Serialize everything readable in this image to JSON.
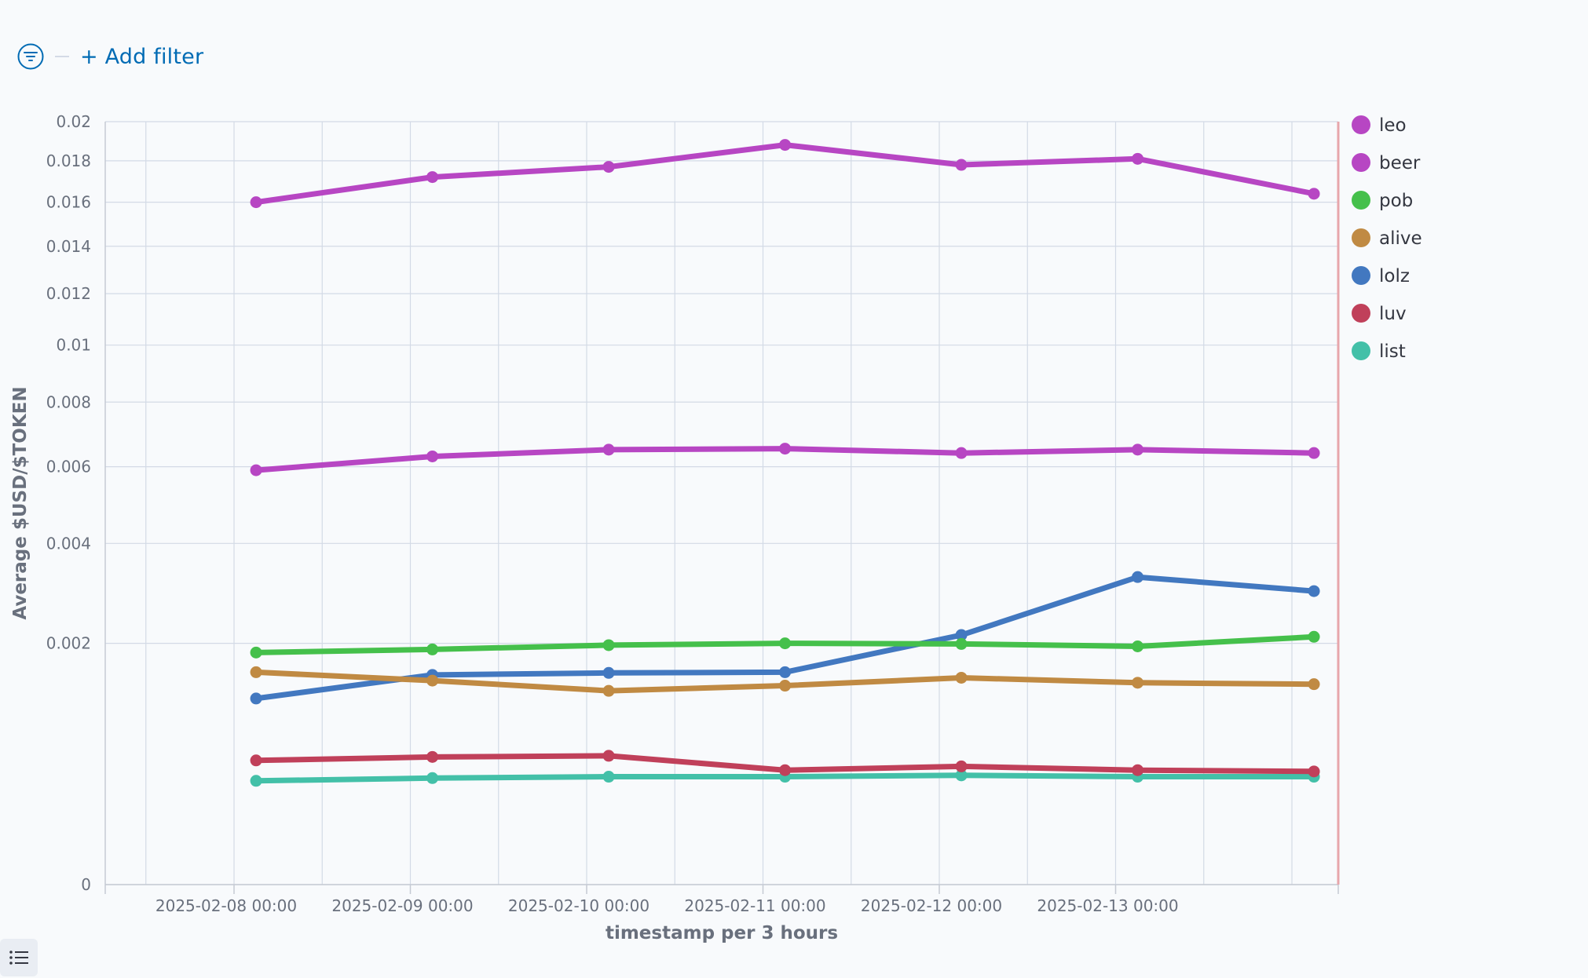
{
  "filter_bar": {
    "add_filter_label": "+ Add filter"
  },
  "chart_data": {
    "type": "line",
    "xlabel": "timestamp per 3 hours",
    "ylabel": "Average $USD/$TOKEN",
    "y_scale": "sqrt",
    "ylim": [
      0,
      0.02
    ],
    "y_ticks": [
      "0",
      "0.002",
      "0.004",
      "0.006",
      "0.008",
      "0.01",
      "0.012",
      "0.014",
      "0.016",
      "0.018",
      "0.02"
    ],
    "y_tick_values": [
      0,
      0.002,
      0.004,
      0.006,
      0.008,
      0.01,
      0.012,
      0.014,
      0.016,
      0.018,
      0.02
    ],
    "x_tick_labels": [
      "2025-02-08 00:00",
      "2025-02-09 00:00",
      "2025-02-10 00:00",
      "2025-02-11 00:00",
      "2025-02-12 00:00",
      "2025-02-13 00:00"
    ],
    "x": [
      "2025-02-08 03:00",
      "2025-02-09 03:00",
      "2025-02-10 03:00",
      "2025-02-11 03:00",
      "2025-02-12 03:00",
      "2025-02-13 03:00",
      "2025-02-14 03:00"
    ],
    "grid": true,
    "legend_position": "right",
    "series": [
      {
        "name": "leo",
        "color": "#b746c3",
        "values": [
          0.016,
          0.0172,
          0.0177,
          0.0188,
          0.0178,
          0.0181,
          0.0164
        ]
      },
      {
        "name": "beer",
        "color": "#b746c3",
        "values": [
          0.0059,
          0.0063,
          0.0065,
          0.00653,
          0.0064,
          0.0065,
          0.0064
        ]
      },
      {
        "name": "pob",
        "color": "#45c04b",
        "values": [
          0.00185,
          0.0019,
          0.00197,
          0.002,
          0.00199,
          0.00195,
          0.00211
        ]
      },
      {
        "name": "alive",
        "color": "#c08a43",
        "values": [
          0.00155,
          0.00143,
          0.00129,
          0.00136,
          0.00147,
          0.0014,
          0.00138
        ]
      },
      {
        "name": "lolz",
        "color": "#4278c0",
        "values": [
          0.00119,
          0.00151,
          0.00154,
          0.00155,
          0.00214,
          0.00325,
          0.00296
        ]
      },
      {
        "name": "luv",
        "color": "#c0405a",
        "values": [
          0.00053,
          0.00056,
          0.00057,
          0.00045,
          0.00048,
          0.00045,
          0.00044
        ]
      },
      {
        "name": "list",
        "color": "#43c0a8",
        "values": [
          0.00037,
          0.00039,
          0.0004,
          0.0004,
          0.00041,
          0.0004,
          0.0004
        ]
      }
    ]
  }
}
